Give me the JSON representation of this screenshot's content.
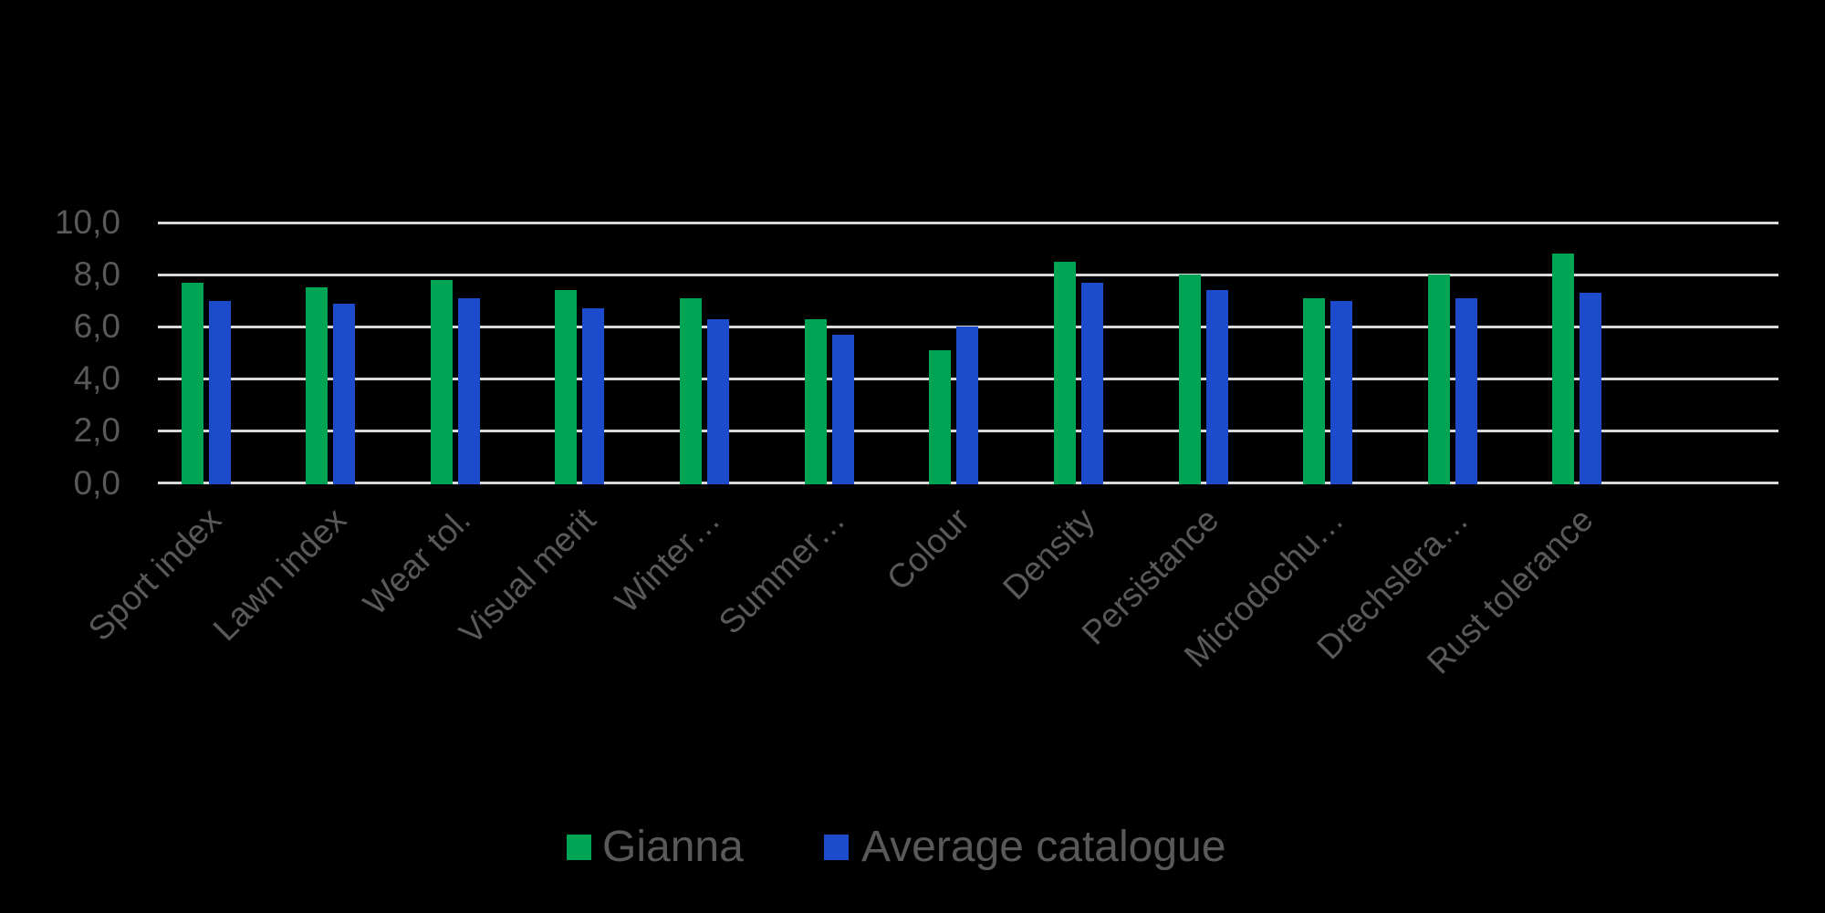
{
  "chart_data": {
    "type": "bar",
    "title": "",
    "xlabel": "",
    "ylabel": "",
    "categories": [
      "Sport index",
      "Lawn index",
      "Wear tol.",
      "Visual merit",
      "Winter…",
      "Summer…",
      "Colour",
      "Density",
      "Persistance",
      "Microdochu…",
      "Drechslera…",
      "Rust tolerance"
    ],
    "series": [
      {
        "name": "Gianna",
        "color": "#00A455",
        "values": [
          7.7,
          7.5,
          7.8,
          7.4,
          7.1,
          6.3,
          5.1,
          8.5,
          8.0,
          7.1,
          8.0,
          8.8
        ]
      },
      {
        "name": "Average catalogue",
        "color": "#1C4BCC",
        "values": [
          7.0,
          6.9,
          7.1,
          6.7,
          6.3,
          5.7,
          6.0,
          7.7,
          7.4,
          7.0,
          7.1,
          7.3
        ]
      }
    ],
    "ylim": [
      0,
      10
    ],
    "ytick_interval": 2,
    "ytick_labels": [
      "0,0",
      "2,0",
      "4,0",
      "6,0",
      "8,0",
      "10,0"
    ],
    "decimal_separator": ",",
    "grid": true,
    "gridline_color": "#D9D9D9",
    "tick_label_color": "#595959",
    "background_color": "#000000",
    "legend_position": "bottom"
  },
  "legend": {
    "items": [
      {
        "label": "Gianna",
        "color": "#00A455"
      },
      {
        "label": "Average catalogue",
        "color": "#1C4BCC"
      }
    ]
  }
}
